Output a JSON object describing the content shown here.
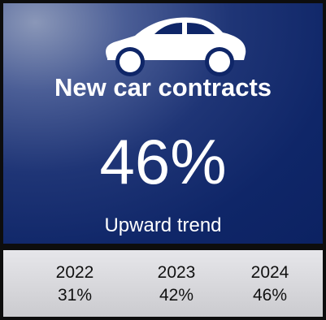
{
  "icon": "car-icon",
  "colors": {
    "panel_dark": "#0c2262",
    "panel_light": "#8a97b8",
    "text_light": "#ffffff",
    "footer_bg": "#d8d8dc",
    "border": "#0d0d0d"
  },
  "title": "New car contracts",
  "value": "46%",
  "trend": "Upward trend",
  "history": [
    {
      "year": "2022",
      "percent": "31%"
    },
    {
      "year": "2023",
      "percent": "42%"
    },
    {
      "year": "2024",
      "percent": "46%"
    }
  ]
}
